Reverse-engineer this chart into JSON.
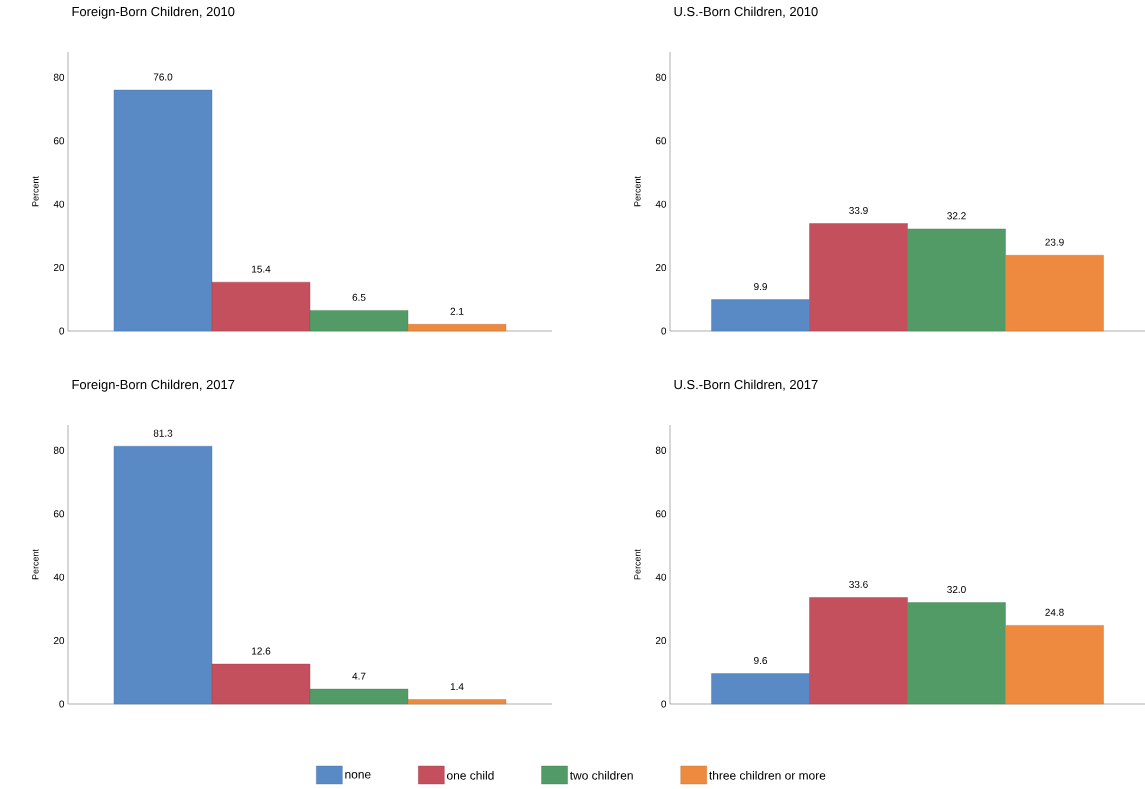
{
  "chart_data": [
    {
      "type": "bar",
      "title": "Foreign-Born Children, 2010",
      "ylabel": "Percent",
      "categories": [
        null
      ],
      "ylim": [
        0,
        88
      ],
      "yticks": [
        0,
        20,
        40,
        60,
        80
      ],
      "series": [
        {
          "color": "#5a8ac6",
          "values": [
            76.0
          ],
          "value_labels": [
            "76.0"
          ]
        },
        {
          "color": "#c44f5d",
          "values": [
            15.4
          ],
          "value_labels": [
            "15.4"
          ]
        },
        {
          "color": "#529b67",
          "values": [
            6.5
          ],
          "value_labels": [
            "6.5"
          ]
        },
        {
          "color": "#ee8a3f",
          "values": [
            2.1
          ],
          "value_labels": [
            "2.1"
          ]
        }
      ]
    },
    {
      "type": "bar",
      "title": "U.S.-Born Children, 2010",
      "ylabel": "Percent",
      "categories": [
        null
      ],
      "ylim": [
        0,
        88
      ],
      "yticks": [
        0,
        20,
        40,
        60,
        80
      ],
      "series": [
        {
          "color": "#5a8ac6",
          "values": [
            9.9
          ],
          "value_labels": [
            "9.9"
          ]
        },
        {
          "color": "#c44f5d",
          "values": [
            33.9
          ],
          "value_labels": [
            "33.9"
          ]
        },
        {
          "color": "#529b67",
          "values": [
            32.2
          ],
          "value_labels": [
            "32.2"
          ]
        },
        {
          "color": "#ee8a3f",
          "values": [
            23.9
          ],
          "value_labels": [
            "23.9"
          ]
        }
      ]
    },
    {
      "type": "bar",
      "title": "Foreign-Born Children, 2017",
      "ylabel": "Percent",
      "categories": [
        null
      ],
      "ylim": [
        0,
        88
      ],
      "yticks": [
        0,
        20,
        40,
        60,
        80
      ],
      "series": [
        {
          "color": "#5a8ac6",
          "values": [
            81.3
          ],
          "value_labels": [
            "81.3"
          ]
        },
        {
          "color": "#c44f5d",
          "values": [
            12.6
          ],
          "value_labels": [
            "12.6"
          ]
        },
        {
          "color": "#529b67",
          "values": [
            4.7
          ],
          "value_labels": [
            "4.7"
          ]
        },
        {
          "color": "#ee8a3f",
          "values": [
            1.4
          ],
          "value_labels": [
            "1.4"
          ]
        }
      ]
    },
    {
      "type": "bar",
      "title": "U.S.-Born Children, 2017",
      "ylabel": "Percent",
      "categories": [
        null
      ],
      "ylim": [
        0,
        88
      ],
      "yticks": [
        0,
        20,
        40,
        60,
        80
      ],
      "legend": "bottom",
      "series": [
        {
          "name": "none",
          "color": "#5a8ac6",
          "values": [
            9.6
          ],
          "value_labels": [
            "9.6"
          ]
        },
        {
          "name": "one child",
          "color": "#c44f5d",
          "values": [
            33.6
          ],
          "value_labels": [
            "33.6"
          ]
        },
        {
          "name": "two children",
          "color": "#529b67",
          "values": [
            32.0
          ],
          "value_labels": [
            "32.0"
          ]
        },
        {
          "name": "three children or more",
          "color": "#ee8a3f",
          "values": [
            24.8
          ],
          "value_labels": [
            "24.8"
          ]
        }
      ]
    }
  ]
}
